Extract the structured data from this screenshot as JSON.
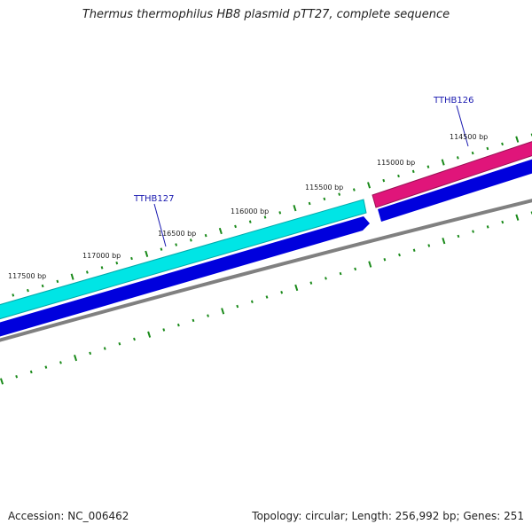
{
  "title": "Thermus thermophilus HB8 plasmid pTT27, complete sequence",
  "footer": {
    "accession": "Accession: NC_006462",
    "summary": "Topology: circular; Length: 256,992 bp; Genes: 251"
  },
  "colors": {
    "gene_forward_a": "#00e5e5",
    "gene_forward_b": "#e0157a",
    "gene_reverse": "#0000dd",
    "backbone": "#808080",
    "tick_mark": "#1a8a1a",
    "gene_label": "#1a1ab0"
  },
  "scale_labels": [
    "117500 bp",
    "117000 bp",
    "116500 bp",
    "116000 bp",
    "115500 bp",
    "115000 bp",
    "114500 bp"
  ],
  "gene_labels": [
    "TTHB127",
    "TTHB126"
  ]
}
